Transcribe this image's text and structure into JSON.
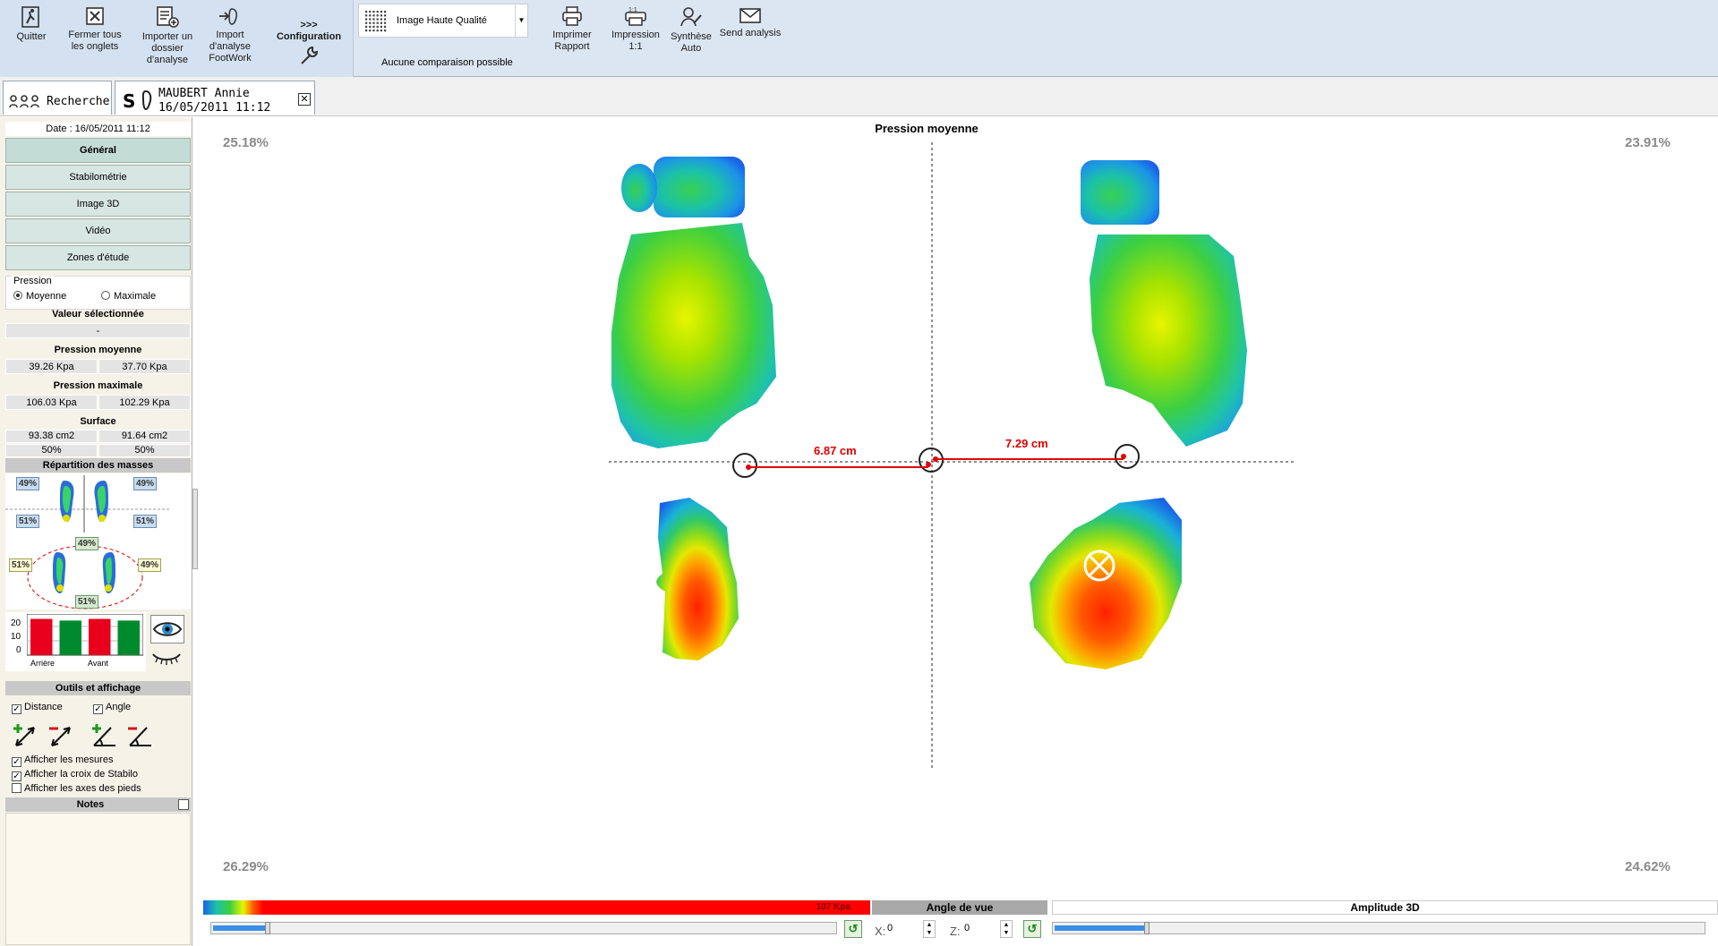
{
  "toolbar": {
    "quit": "Quitter",
    "close_tabs": "Fermer tous\nles onglets",
    "import_folder": "Importer un\ndossier\nd'analyse",
    "import_footwork": "Import\nd'analyse\nFootWork",
    "config_arrows": ">>>",
    "config": "Configuration",
    "quality": "Image Haute Qualité",
    "no_comparison": "Aucune comparaison possible",
    "print_report": "Imprimer\nRapport",
    "print_11": "Impression\n1:1",
    "synthesis": "Synthèse\nAuto",
    "send": "Send analysis"
  },
  "tabs": {
    "search": "Recherche",
    "patient_name": "MAUBERT Annie",
    "patient_date": "16/05/2011 11:12"
  },
  "sidebar": {
    "date": "Date : 16/05/2011 11:12",
    "nav": [
      "Général",
      "Stabilométrie",
      "Image 3D",
      "Vidéo",
      "Zones d'étude"
    ],
    "pressure_group": "Pression",
    "radio_mean": "Moyenne",
    "radio_max": "Maximale",
    "selected_title": "Valeur sélectionnée",
    "selected_value": "-",
    "mean_title": "Pression moyenne",
    "mean_left": "39.26 Kpa",
    "mean_right": "37.70 Kpa",
    "max_title": "Pression maximale",
    "max_left": "106.03 Kpa",
    "max_right": "102.29 Kpa",
    "surface_title": "Surface",
    "surface_left": "93.38 cm2",
    "surface_right": "91.64 cm2",
    "surface_pct_left": "50%",
    "surface_pct_right": "50%",
    "mass_title": "Répartition des masses",
    "mass": {
      "top_l": "49%",
      "top_r": "49%",
      "mid_l": "51%",
      "mid_r": "51%",
      "c_top": "49%",
      "c_bot": "51%",
      "side_l": "51%",
      "side_r": "49%"
    },
    "bar_chart": {
      "yticks": [
        "20",
        "10",
        "0"
      ],
      "labels": [
        "Arrière",
        "Avant"
      ],
      "values": [
        22,
        21,
        22,
        21
      ],
      "colors": [
        "#e8001c",
        "#008a2e",
        "#e8001c",
        "#008a2e"
      ],
      "ymax": 25
    },
    "tools_title": "Outils et affichage",
    "chk_distance": "Distance",
    "chk_angle": "Angle",
    "show_measures": "Afficher les mesures",
    "show_cross": "Afficher la croix de Stabilo",
    "show_axes": "Afficher les axes des pieds",
    "notes": "Notes"
  },
  "main": {
    "title": "Pression moyenne",
    "tl": "25.18%",
    "tr": "23.91%",
    "bl": "26.29%",
    "br": "24.62%",
    "dist_left": "6.87 cm",
    "dist_right": "7.29 cm"
  },
  "bottom": {
    "scale_label": "107 Kpa",
    "view_angle": "Angle de vue",
    "amplitude": "Amplitude 3D",
    "x_label": "X:",
    "x_value": "0",
    "z_label": "Z:",
    "z_value": "0"
  }
}
